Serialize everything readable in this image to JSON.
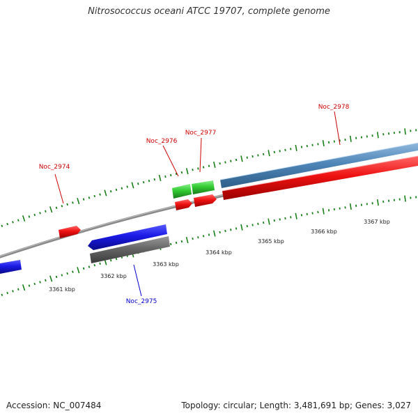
{
  "title": "Nitrosococcus oceani ATCC 19707, complete genome",
  "accession": "Accession: NC_007484",
  "summary": "Topology: circular; Length: 3,481,691 bp; Genes: 3,027",
  "colors": {
    "background": "#ffffff",
    "backbone": "#8a8a8a",
    "tick": "#1a7f1a",
    "forward_cds": "#ee1111",
    "reverse_cds": "#1a1ae6",
    "trna_green": "#33cc33",
    "gray_feature": "#666666",
    "steel_feature": "#4f86b8",
    "label_red": "#cc0000",
    "label_blue": "#0000cc"
  },
  "scale_labels": [
    {
      "kbp": 3361,
      "text": "3361 kbp"
    },
    {
      "kbp": 3362,
      "text": "3362 kbp"
    },
    {
      "kbp": 3363,
      "text": "3363 kbp"
    },
    {
      "kbp": 3364,
      "text": "3364 kbp"
    },
    {
      "kbp": 3365,
      "text": "3365 kbp"
    },
    {
      "kbp": 3366,
      "text": "3366 kbp"
    },
    {
      "kbp": 3367,
      "text": "3367 kbp"
    }
  ],
  "gene_labels": [
    {
      "name": "Noc_2974",
      "color": "red"
    },
    {
      "name": "Noc_2976",
      "color": "red"
    },
    {
      "name": "Noc_2977",
      "color": "red"
    },
    {
      "name": "Noc_2978",
      "color": "red"
    },
    {
      "name": "Noc_2975",
      "color": "blue"
    }
  ]
}
